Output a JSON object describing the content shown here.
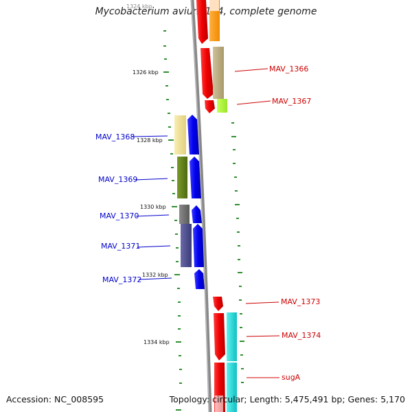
{
  "title": "Mycobacterium avium 104, complete genome",
  "footer": {
    "accession": "Accession: NC_008595",
    "summary": "Topology: circular; Length: 5,475,491 bp; Genes: 5,170"
  },
  "ruler": {
    "labels": [
      {
        "id": "tick-1324",
        "text": "1324 kbp"
      },
      {
        "id": "tick-1326",
        "text": "1326 kbp"
      },
      {
        "id": "tick-1328",
        "text": "1328 kbp"
      },
      {
        "id": "tick-1330",
        "text": "1330 kbp"
      },
      {
        "id": "tick-1332",
        "text": "1332 kbp"
      },
      {
        "id": "tick-1334",
        "text": "1334 kbp"
      }
    ]
  },
  "gene_labels": {
    "forward": [
      "MAV_1366",
      "MAV_1367",
      "MAV_1373",
      "MAV_1374",
      "sugA"
    ],
    "reverse": [
      "MAV_1368",
      "MAV_1369",
      "MAV_1370",
      "MAV_1371",
      "MAV_1372"
    ]
  },
  "colors": {
    "forward_label": "#cc0000",
    "reverse_label": "#0000cc",
    "forward_gene": "#ee0000",
    "reverse_gene": "#0000ee",
    "backbone": "#808080",
    "tick": "#1a7a1a"
  }
}
